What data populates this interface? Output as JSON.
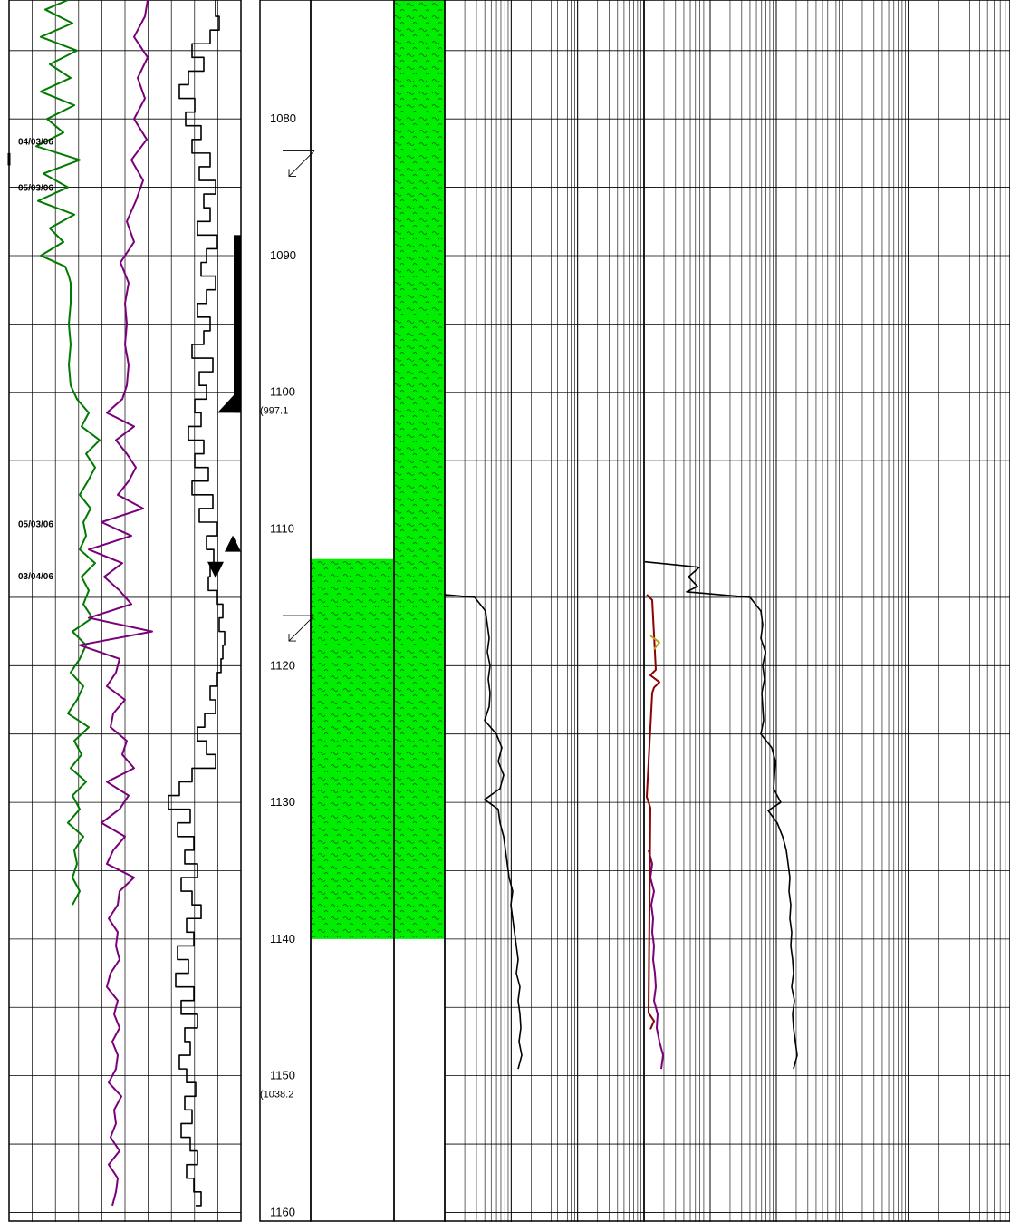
{
  "chart_data": {
    "type": "line",
    "title": "",
    "depth_axis": {
      "min": 1071.3,
      "max": 1160.7,
      "tick_step": 10,
      "labels": [
        "1080",
        "1090",
        "1100",
        "1110",
        "1120",
        "1130",
        "1140",
        "1150",
        "1160"
      ],
      "tvd_labels": [
        {
          "depth": 1100,
          "text": "(997.1"
        },
        {
          "depth": 1150,
          "text": "(1038.2"
        }
      ]
    },
    "date_annotations": [
      {
        "depth": 1081.6,
        "text": "04/03/06"
      },
      {
        "depth": 1085.0,
        "text": "05/03/06"
      },
      {
        "depth": 1109.6,
        "text": "05/03/06"
      },
      {
        "depth": 1113.4,
        "text": "03/04/06"
      }
    ],
    "lithology": [
      {
        "column": "interpreted",
        "top": 1112.2,
        "base": 1140.0,
        "color": "#00ee00",
        "pattern": "wavy"
      },
      {
        "column": "cuttings",
        "top": 1071.3,
        "base": 1140.0,
        "color": "#00ee00",
        "pattern": "wavy"
      }
    ],
    "markers": [
      {
        "type": "casing-shoe",
        "depth": 1101.5
      },
      {
        "type": "triangle-up",
        "depth": 1111.0
      },
      {
        "type": "triangle-down",
        "depth": 1112.8
      }
    ],
    "dip_symbols": [
      1083.0,
      1117.0
    ],
    "series": [
      {
        "name": "",
        "track": 1,
        "color": "#007a00",
        "depth": [
          1071.3,
          1072,
          1073,
          1074,
          1075,
          1076,
          1077,
          1078,
          1079,
          1080,
          1081,
          1082,
          1083,
          1084,
          1085,
          1086,
          1087,
          1088,
          1089,
          1090,
          1090.8,
          1091.5,
          1092,
          1093.5,
          1095,
          1096.5,
          1098,
          1099.5,
          1100.5,
          1101.5,
          1102.5,
          1103.5,
          1104.5,
          1105.5,
          1106.5,
          1107.5,
          1108.5,
          1109.5,
          1110.5,
          1111.5,
          1112.5,
          1113.5,
          1114.5,
          1115.5,
          1116.5,
          1117.5,
          1118.5,
          1119.5,
          1120.5,
          1121.5,
          1122.5,
          1123.5,
          1124.5,
          1125.5,
          1126.5,
          1127.5,
          1128.5,
          1129.5,
          1130.5,
          1131.5,
          1132.5,
          1133.5,
          1134.5,
          1135.5,
          1136.5,
          1137.5
        ],
        "x": [
          75,
          50,
          80,
          45,
          85,
          55,
          78,
          45,
          82,
          52,
          70,
          40,
          88,
          48,
          75,
          42,
          82,
          55,
          70,
          45,
          72,
          76,
          78,
          78,
          76,
          78,
          76,
          78,
          85,
          98,
          90,
          110,
          95,
          105,
          97,
          88,
          100,
          92,
          95,
          88,
          105,
          90,
          98,
          92,
          102,
          80,
          95,
          88,
          78,
          92,
          85,
          75,
          98,
          82,
          90,
          78,
          95,
          80,
          88,
          75,
          92,
          82,
          85,
          80,
          88,
          80
        ]
      },
      {
        "name": "",
        "track": 1,
        "color": "#7a007a",
        "depth": [
          1071.3,
          1072.5,
          1074,
          1075.5,
          1077,
          1078.5,
          1080,
          1081.5,
          1083,
          1084.5,
          1086,
          1087.5,
          1089,
          1090.5,
          1092,
          1093.5,
          1095,
          1096.5,
          1098,
          1099.5,
          1100.5,
          1101.5,
          1102.5,
          1103.5,
          1104.5,
          1105.5,
          1106.5,
          1107.5,
          1108.5,
          1109.5,
          1110.5,
          1111.5,
          1112.5,
          1113.5,
          1114.5,
          1115.5,
          1116.5,
          1117.5,
          1118.5,
          1119.5,
          1120.5,
          1121.5,
          1122.5,
          1123.5,
          1124.5,
          1125.5,
          1126.5,
          1127.5,
          1128.5,
          1129.5,
          1130.5,
          1131.5,
          1132.5,
          1133.5,
          1134.5,
          1135.5,
          1136.5,
          1137.5,
          1138.5,
          1139.5,
          1140.5,
          1141.5,
          1142.5,
          1143.5,
          1144.5,
          1145.5,
          1146.5,
          1147.5,
          1148.5,
          1149.5,
          1150.5,
          1151.5,
          1152.5,
          1153.5,
          1154.5,
          1155.5,
          1156.5,
          1157.5,
          1158.5,
          1159.5
        ],
        "x": [
          163,
          160,
          148,
          163,
          152,
          160,
          148,
          162,
          145,
          158,
          150,
          140,
          148,
          133,
          142,
          138,
          140,
          138,
          142,
          140,
          135,
          118,
          148,
          128,
          140,
          150,
          142,
          130,
          158,
          112,
          145,
          98,
          135,
          115,
          132,
          145,
          98,
          168,
          88,
          132,
          128,
          118,
          138,
          125,
          122,
          140,
          135,
          148,
          118,
          142,
          132,
          112,
          138,
          125,
          118,
          148,
          132,
          130,
          120,
          130,
          128,
          132,
          122,
          118,
          130,
          126,
          132,
          124,
          130,
          128,
          120,
          134,
          126,
          128,
          122,
          132,
          120,
          130,
          128,
          124
        ]
      },
      {
        "name": "",
        "track": 1,
        "color": "#000000",
        "style": "step",
        "depth": [
          1071.3,
          1072.5,
          1073.5,
          1074.5,
          1075.5,
          1076.5,
          1077.5,
          1078.5,
          1079.5,
          1080.5,
          1081.5,
          1082.5,
          1083.5,
          1084.5,
          1085.5,
          1086.5,
          1087.5,
          1088.5,
          1089.5,
          1090.5,
          1091.5,
          1092.5,
          1093.5,
          1094.5,
          1095.5,
          1096.5,
          1097.5,
          1098.5,
          1099.5,
          1100.5,
          1101.5,
          1102.5,
          1103.5,
          1104.5,
          1105.5,
          1106.5,
          1107.5,
          1108.5,
          1109.5,
          1110.5,
          1111.5,
          1112.5,
          1113.5,
          1114.5,
          1115.5,
          1116.5,
          1117.5,
          1118.5,
          1119.5,
          1120.5,
          1121.5,
          1122.5,
          1123.5,
          1124.5,
          1125.5,
          1126.5,
          1127.5,
          1128.5,
          1129.5,
          1130.5,
          1131.5,
          1132.5,
          1133.5,
          1134.5,
          1135.5,
          1136.5,
          1137.5,
          1138.5,
          1139.5,
          1140.5,
          1141.5,
          1142.5,
          1143.5,
          1144.5,
          1145.5,
          1146.5,
          1147.5,
          1148.5,
          1149.5,
          1150.5,
          1151.5,
          1152.5,
          1153.5,
          1154.5,
          1155.5,
          1156.5,
          1157.5,
          1158.5,
          1159.5
        ],
        "x": [
          238,
          242,
          232,
          212,
          225,
          208,
          198,
          215,
          205,
          222,
          212,
          232,
          220,
          238,
          225,
          232,
          218,
          240,
          228,
          222,
          238,
          228,
          218,
          232,
          225,
          212,
          235,
          220,
          228,
          215,
          222,
          208,
          225,
          215,
          230,
          212,
          235,
          220,
          240,
          228,
          236,
          232,
          230,
          240,
          246,
          242,
          248,
          246,
          244,
          240,
          232,
          238,
          226,
          218,
          228,
          238,
          212,
          198,
          186,
          210,
          196,
          214,
          204,
          218,
          200,
          212,
          222,
          206,
          214,
          196,
          208,
          194,
          214,
          200,
          218,
          204,
          210,
          198,
          206,
          216,
          204,
          212,
          200,
          210,
          218,
          206,
          214,
          222,
          216
        ]
      },
      {
        "name": "",
        "track": 3,
        "color": "#000000",
        "depth": [
          1114.8,
          1115.0,
          1116.0,
          1117.0,
          1118.0,
          1119.0,
          1120.0,
          1121.0,
          1122.0,
          1123.0,
          1124.0,
          1125.0,
          1126.0,
          1127.0,
          1128.0,
          1129.0,
          1129.8,
          1130.5,
          1131.5,
          1132.5,
          1133.5,
          1134.5,
          1135.5,
          1136.5,
          1137.5,
          1138.5,
          1139.5,
          1140.5,
          1141.5,
          1142.5,
          1143.5,
          1144.5,
          1145.5,
          1146.5,
          1147.5,
          1148.5,
          1149.5
        ],
        "x": [
          490,
          524,
          536,
          538,
          540,
          538,
          541,
          539,
          541,
          540,
          535,
          548,
          554,
          550,
          556,
          552,
          535,
          550,
          552,
          556,
          558,
          560,
          562,
          566,
          564,
          566,
          568,
          570,
          572,
          570,
          574,
          572,
          574,
          575,
          573,
          576,
          572
        ]
      },
      {
        "name": "",
        "track": 4,
        "color": "#000000",
        "depth": [
          1112.4,
          1112.8,
          1113.5,
          1114.2,
          1114.6,
          1115.0,
          1116.0,
          1117.0,
          1118.0,
          1119.0,
          1120.0,
          1121.0,
          1122.0,
          1123.0,
          1124.0,
          1125.0,
          1126.0,
          1127.0,
          1128.0,
          1129.0,
          1130.0,
          1130.6,
          1131.5,
          1132.5,
          1133.5,
          1134.5,
          1135.5,
          1136.5,
          1137.5,
          1138.5,
          1139.5,
          1140.5,
          1141.5,
          1142.5,
          1143.5,
          1144.5,
          1145.5,
          1146.5,
          1147.5,
          1148.5,
          1149.5
        ],
        "x": [
          712,
          772,
          760,
          770,
          758,
          828,
          840,
          842,
          840,
          845,
          842,
          844,
          841,
          842,
          843,
          840,
          852,
          856,
          855,
          854,
          862,
          848,
          858,
          864,
          868,
          870,
          872,
          871,
          873,
          872,
          874,
          873,
          875,
          876,
          874,
          877,
          875,
          876,
          878,
          880,
          876
        ]
      },
      {
        "name": "",
        "track": 4,
        "color": "#7a007a",
        "depth": [
          1133.5,
          1134.5,
          1135.5,
          1136.5,
          1137.5,
          1138.5,
          1139.5,
          1140.5,
          1141.5,
          1142.5,
          1143.5,
          1144.5,
          1145.5,
          1146.5,
          1147.5,
          1148.5,
          1149.5
        ],
        "x": [
          716,
          720,
          718,
          722,
          719,
          721,
          720,
          722,
          721,
          723,
          724,
          722,
          726,
          725,
          728,
          732,
          730
        ]
      },
      {
        "name": "",
        "track": 4,
        "color": "#8b0000",
        "depth": [
          1114.8,
          1115.2,
          1120.3,
          1120.7,
          1121.2,
          1121.6,
          1122.0,
          1129.6,
          1130.4,
          1145.4,
          1146.0,
          1146.6
        ],
        "x": [
          714,
          720,
          724,
          718,
          728,
          722,
          720,
          714,
          718,
          716,
          722,
          718
        ]
      },
      {
        "name": "",
        "track": 4,
        "color": "#c0a020",
        "depth": [
          1117.8,
          1118.3,
          1118.8
        ],
        "x": [
          718,
          728,
          722
        ]
      }
    ]
  }
}
